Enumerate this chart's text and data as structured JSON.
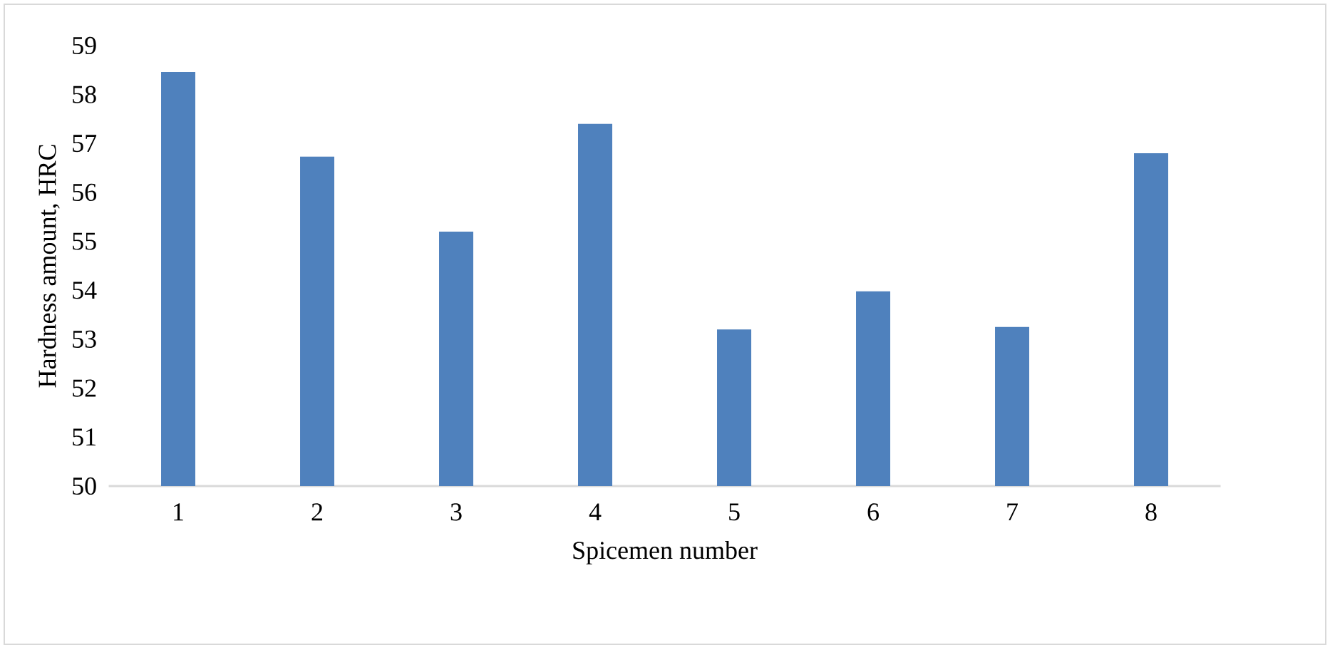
{
  "chart_data": {
    "type": "bar",
    "xlabel": "Spicemen number",
    "ylabel": "Hardness amount, HRC",
    "categories": [
      "1",
      "2",
      "3",
      "4",
      "5",
      "6",
      "7",
      "8"
    ],
    "values": [
      58.46,
      56.73,
      55.2,
      57.4,
      53.2,
      53.98,
      53.25,
      56.8
    ],
    "color": "#4f81bd",
    "ylim": [
      50,
      59
    ],
    "yticks": [
      50,
      51,
      52,
      53,
      54,
      55,
      56,
      57,
      58,
      59
    ]
  }
}
